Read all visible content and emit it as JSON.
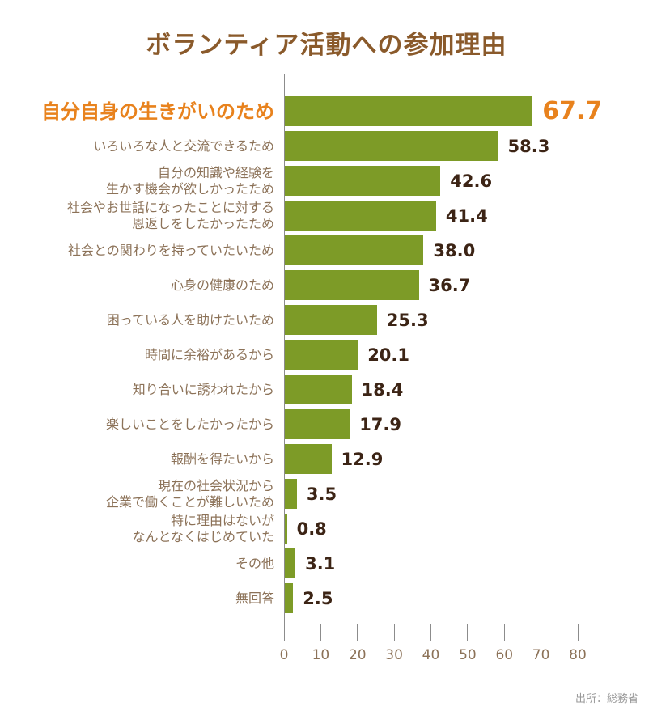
{
  "title": "ボランティア活動への参加理由",
  "source": "出所：総務省",
  "colors": {
    "bar": "#7D9B27",
    "accent_orange": "#E8821D",
    "title_brown": "#8A5A2B",
    "label_brown": "#8C7258",
    "value_dark": "#3C2415",
    "axis_gray": "#8C8C8C",
    "source_gray": "#999999"
  },
  "chart_data": {
    "type": "bar",
    "orientation": "horizontal",
    "title": "ボランティア活動への参加理由",
    "xlabel": "",
    "ylabel": "",
    "xlim": [
      0,
      80
    ],
    "x_ticks": [
      "0",
      "10",
      "20",
      "30",
      "40",
      "50",
      "60",
      "70",
      "80"
    ],
    "grid": false,
    "legend": false,
    "categories": [
      "自分自身の生きがいのため",
      "いろいろな人と交流できるため",
      "自分の知識や経験を生かす機会が欲しかったため",
      "社会やお世話になったことに対する恩返しをしたかったため",
      "社会との関わりを持っていたいため",
      "心身の健康のため",
      "困っている人を助けたいため",
      "時間に余裕があるから",
      "知り合いに誘われたから",
      "楽しいことをしたかったから",
      "報酬を得たいから",
      "現在の社会状況から企業で働くことが難しいため",
      "特に理由はないがなんとなくはじめていた",
      "その他",
      "無回答"
    ],
    "values": [
      67.7,
      58.3,
      42.6,
      41.4,
      38.0,
      36.7,
      25.3,
      20.1,
      18.4,
      17.9,
      12.9,
      3.5,
      0.8,
      3.1,
      2.5
    ],
    "rows": [
      {
        "label_lines": [
          "自分自身の生きがいのため"
        ],
        "value": 67.7,
        "value_label": "67.7",
        "highlight": true
      },
      {
        "label_lines": [
          "いろいろな人と交流できるため"
        ],
        "value": 58.3,
        "value_label": "58.3",
        "highlight": false
      },
      {
        "label_lines": [
          "自分の知識や経験を",
          "生かす機会が欲しかったため"
        ],
        "value": 42.6,
        "value_label": "42.6",
        "highlight": false
      },
      {
        "label_lines": [
          "社会やお世話になったことに対する",
          "恩返しをしたかったため"
        ],
        "value": 41.4,
        "value_label": "41.4",
        "highlight": false
      },
      {
        "label_lines": [
          "社会との関わりを持っていたいため"
        ],
        "value": 38.0,
        "value_label": "38.0",
        "highlight": false
      },
      {
        "label_lines": [
          "心身の健康のため"
        ],
        "value": 36.7,
        "value_label": "36.7",
        "highlight": false
      },
      {
        "label_lines": [
          "困っている人を助けたいため"
        ],
        "value": 25.3,
        "value_label": "25.3",
        "highlight": false
      },
      {
        "label_lines": [
          "時間に余裕があるから"
        ],
        "value": 20.1,
        "value_label": "20.1",
        "highlight": false
      },
      {
        "label_lines": [
          "知り合いに誘われたから"
        ],
        "value": 18.4,
        "value_label": "18.4",
        "highlight": false
      },
      {
        "label_lines": [
          "楽しいことをしたかったから"
        ],
        "value": 17.9,
        "value_label": "17.9",
        "highlight": false
      },
      {
        "label_lines": [
          "報酬を得たいから"
        ],
        "value": 12.9,
        "value_label": "12.9",
        "highlight": false
      },
      {
        "label_lines": [
          "現在の社会状況から",
          "企業で働くことが難しいため"
        ],
        "value": 3.5,
        "value_label": "3.5",
        "highlight": false
      },
      {
        "label_lines": [
          "特に理由はないが",
          "なんとなくはじめていた"
        ],
        "value": 0.8,
        "value_label": "0.8",
        "highlight": false
      },
      {
        "label_lines": [
          "その他"
        ],
        "value": 3.1,
        "value_label": "3.1",
        "highlight": false
      },
      {
        "label_lines": [
          "無回答"
        ],
        "value": 2.5,
        "value_label": "2.5",
        "highlight": false
      }
    ]
  }
}
